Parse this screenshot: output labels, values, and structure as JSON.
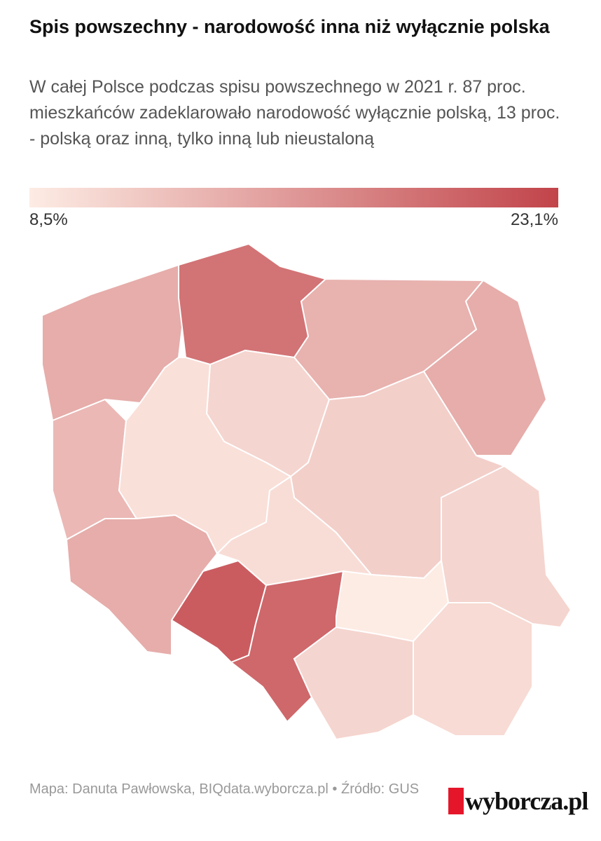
{
  "header": {
    "title": "Spis powszechny - narodowość inna niż wyłącznie polska",
    "subtitle": "W całej Polsce podczas spisu powszechnego w 2021 r. 87 proc. mieszkańców zadeklarowało narodowość wyłącznie polską, 13 proc. - polską oraz inną, tylko inną lub nieustaloną"
  },
  "legend": {
    "min": {
      "value": 8.5,
      "label": "8,5%"
    },
    "max": {
      "value": 23.1,
      "label": "23,1%"
    },
    "colors": [
      "#fdece4",
      "#c1444a"
    ]
  },
  "map": {
    "regions": [
      14,
      19,
      13.5,
      14,
      10.5,
      13,
      9.5,
      11,
      9.8,
      10.5,
      14,
      21,
      20,
      8.5,
      10.5,
      10
    ]
  },
  "footer": {
    "credit": "Mapa: Danuta Pawłowska, BIQdata.wyborcza.pl • Źródło: GUS",
    "logo": "wyborcza.pl"
  }
}
